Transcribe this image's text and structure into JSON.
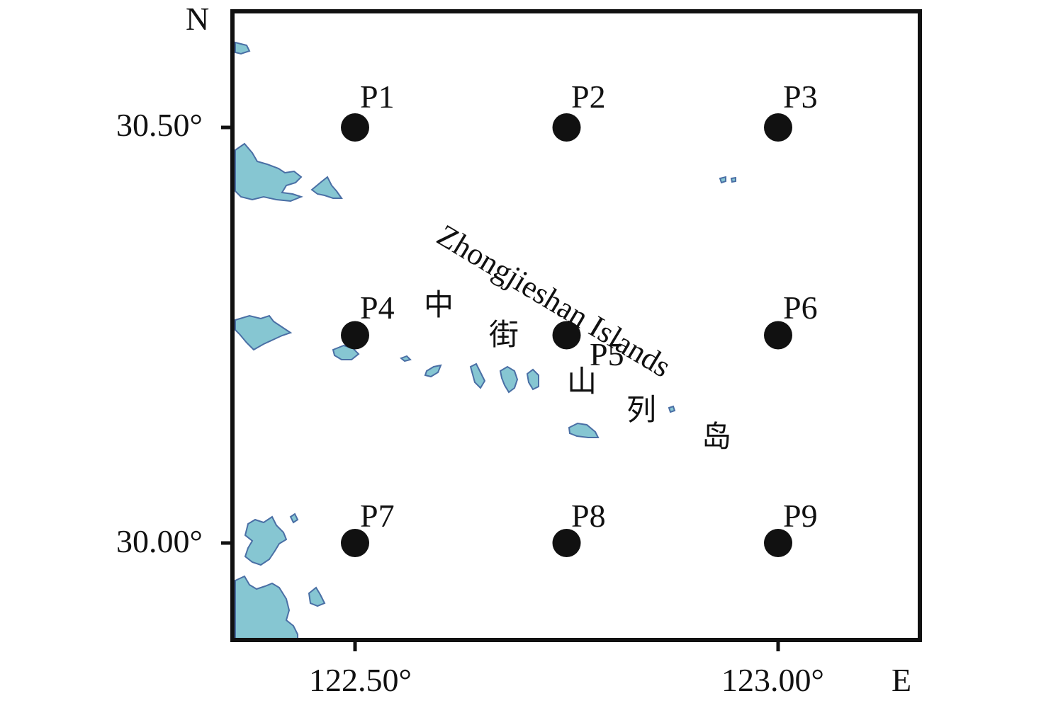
{
  "axis": {
    "north_label": "N",
    "east_label": "E",
    "y_ticks": [
      "30.50°",
      "30.00°"
    ],
    "x_ticks": [
      "122.50°",
      "123.00°"
    ]
  },
  "points": [
    {
      "label": "P1",
      "lon": 122.5,
      "lat": 30.5
    },
    {
      "label": "P2",
      "lon": 122.75,
      "lat": 30.5
    },
    {
      "label": "P3",
      "lon": 123.0,
      "lat": 30.5
    },
    {
      "label": "P4",
      "lon": 122.5,
      "lat": 30.25
    },
    {
      "label": "P5",
      "lon": 122.75,
      "lat": 30.25
    },
    {
      "label": "P6",
      "lon": 123.0,
      "lat": 30.25
    },
    {
      "label": "P7",
      "lon": 122.5,
      "lat": 30.0
    },
    {
      "label": "P8",
      "lon": 122.75,
      "lat": 30.0
    },
    {
      "label": "P9",
      "lon": 123.0,
      "lat": 30.0
    }
  ],
  "islands": {
    "name_en": "Zhongjieshan Islands",
    "name_cn": [
      "中",
      "街",
      "山",
      "列",
      "岛"
    ]
  },
  "colors": {
    "land_fill": "#86c6d2",
    "land_edge": "#4a6fa5",
    "frame": "#111111",
    "point": "#111111"
  }
}
